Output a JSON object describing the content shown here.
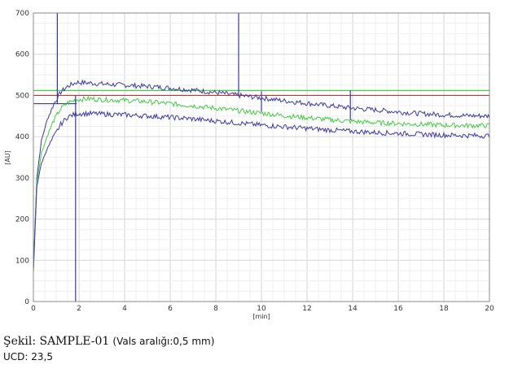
{
  "chart_data": {
    "type": "line",
    "xlabel": "[min]",
    "ylabel": "[AU]",
    "xlim": [
      0,
      20
    ],
    "ylim": [
      0,
      700
    ],
    "xticks": [
      "0",
      "2",
      "4",
      "6",
      "8",
      "10",
      "12",
      "14",
      "16",
      "18",
      "20"
    ],
    "yticks": [
      "0",
      "100",
      "200",
      "300",
      "400",
      "500",
      "600",
      "700"
    ],
    "grid": true,
    "series": [
      {
        "key": "upper",
        "color": "#3a3aa0",
        "x": [
          0,
          0.15,
          0.35,
          0.6,
          0.9,
          1.2,
          1.5,
          1.9,
          2.5,
          3,
          4,
          5,
          6,
          7,
          8,
          9,
          10,
          11,
          12,
          13,
          14,
          15,
          16,
          17,
          18,
          19,
          20
        ],
        "y": [
          80,
          300,
          390,
          440,
          480,
          508,
          522,
          532,
          530,
          528,
          525,
          522,
          518,
          513,
          507,
          500,
          494,
          487,
          481,
          475,
          469,
          465,
          460,
          456,
          453,
          451,
          450
        ]
      },
      {
        "key": "middle",
        "color": "#44cc44",
        "x": [
          0,
          0.15,
          0.35,
          0.6,
          0.9,
          1.2,
          1.5,
          1.9,
          2.5,
          3,
          4,
          5,
          6,
          7,
          8,
          9,
          10,
          11,
          12,
          13,
          14,
          15,
          16,
          17,
          18,
          19,
          20
        ],
        "y": [
          75,
          290,
          360,
          400,
          440,
          468,
          482,
          490,
          492,
          490,
          488,
          485,
          480,
          475,
          469,
          463,
          457,
          451,
          446,
          441,
          437,
          434,
          432,
          430,
          428,
          427,
          427
        ]
      },
      {
        "key": "lower",
        "color": "#3a3aa0",
        "x": [
          0,
          0.15,
          0.35,
          0.6,
          0.9,
          1.2,
          1.5,
          1.9,
          2.5,
          3,
          4,
          5,
          6,
          7,
          8,
          9,
          10,
          11,
          12,
          13,
          14,
          15,
          16,
          17,
          18,
          19,
          20
        ],
        "y": [
          70,
          280,
          335,
          370,
          400,
          430,
          448,
          456,
          456,
          455,
          453,
          450,
          447,
          443,
          438,
          433,
          428,
          424,
          420,
          416,
          413,
          410,
          408,
          406,
          404,
          403,
          402
        ]
      }
    ],
    "reference_lines": [
      {
        "key": "green-ref",
        "y": 512,
        "color": "#44cc44"
      },
      {
        "key": "red-ref",
        "y": 500,
        "color": "#cc3333"
      },
      {
        "key": "blue-ref",
        "y": 480,
        "color": "#3a3aa0",
        "x_end": 1.9
      }
    ],
    "markers": [
      {
        "key": "marker-1",
        "x": 1.05,
        "y_from": 480,
        "y_to": 700
      },
      {
        "key": "marker-2",
        "x": 1.85,
        "y_from": 0,
        "y_to": 500
      },
      {
        "key": "marker-3",
        "x": 9.0,
        "y_from": 500,
        "y_to": 700
      },
      {
        "key": "marker-4",
        "x": 10.0,
        "y_from": 460,
        "y_to": 510
      },
      {
        "key": "marker-5",
        "x": 13.9,
        "y_from": 440,
        "y_to": 512
      }
    ]
  },
  "caption": {
    "label": "Şekil: SAMPLE-01",
    "detail": "(Vals aralığı:0,5 mm)"
  },
  "ucd": "UCD: 23,5"
}
